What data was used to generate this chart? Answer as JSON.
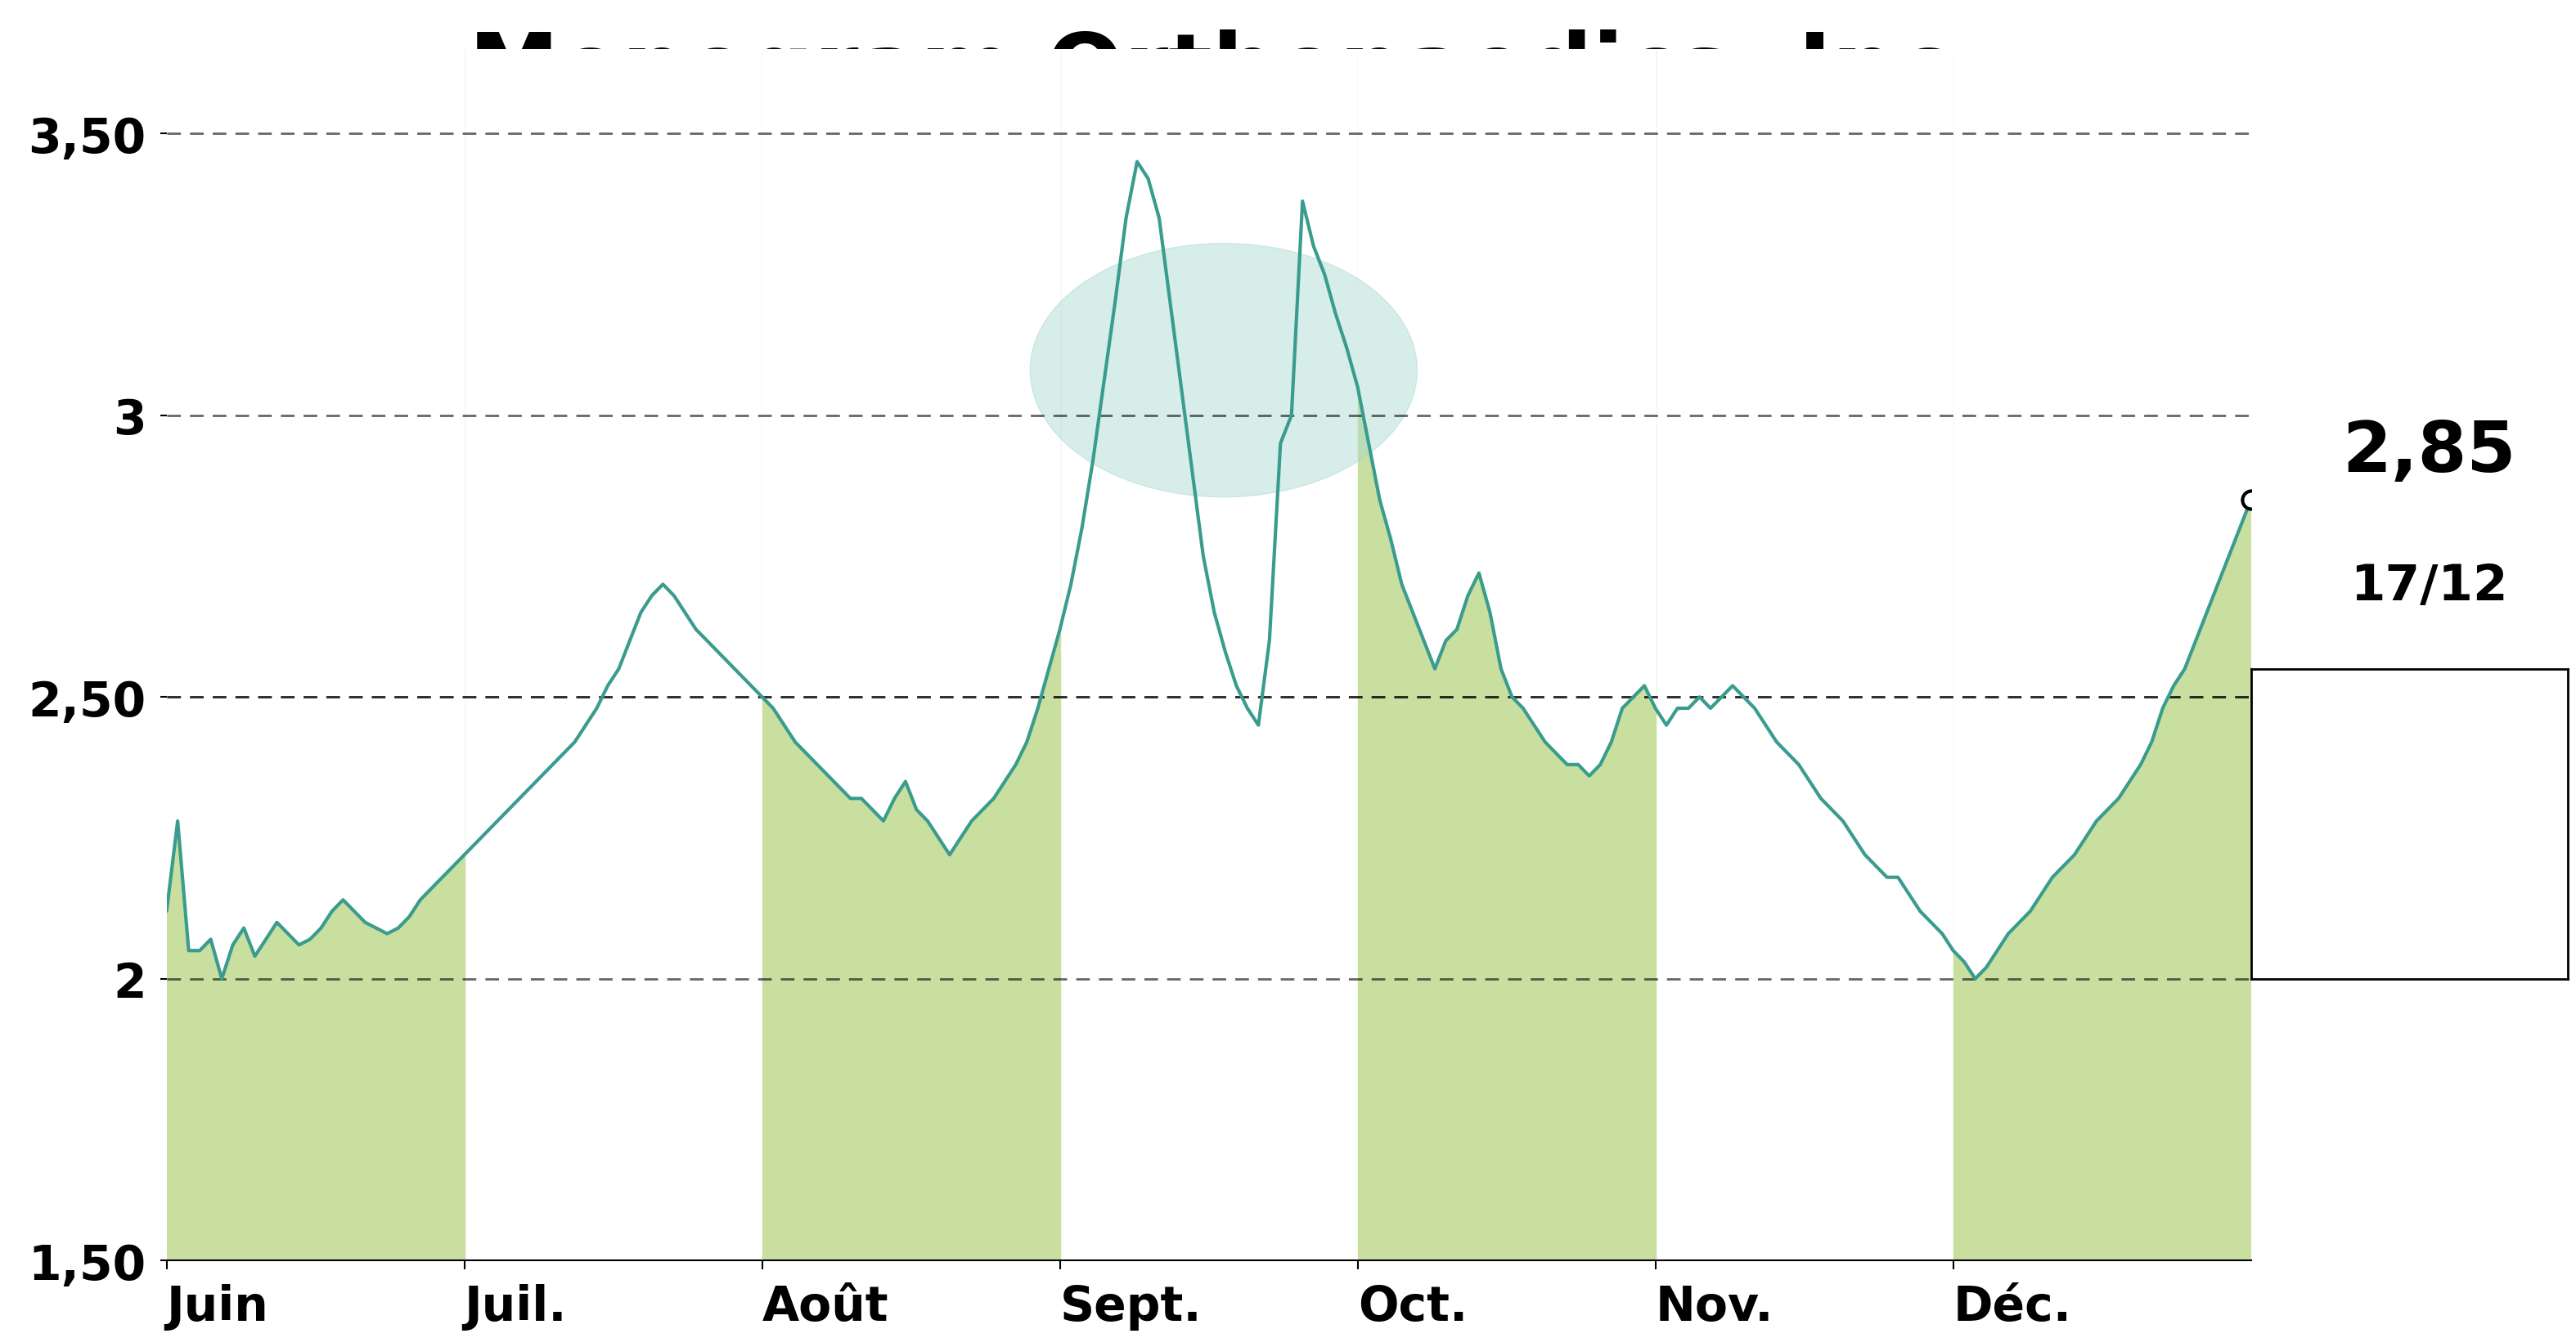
{
  "title": "Monogram Orthopaedics, Inc.",
  "title_bg_color": "#c8dfa0",
  "chart_bg_color": "#ffffff",
  "line_color": "#3a9c8e",
  "line_width": 3.0,
  "fill_color": "#c8dfa0",
  "ylim": [
    1.5,
    3.65
  ],
  "yticks": [
    1.5,
    2.0,
    2.5,
    3.0,
    3.5
  ],
  "ytick_labels": [
    "1,50",
    "2",
    "2,50",
    "3",
    "3,50"
  ],
  "xlabel_months": [
    "Juin",
    "Juil.",
    "Août",
    "Sept.",
    "Oct.",
    "Nov.",
    "Déc."
  ],
  "last_price": "2,85",
  "last_date": "17/12",
  "shaded_months": [
    0,
    2,
    4,
    6
  ],
  "bubble_color": "#a8d8d0",
  "bubble_alpha": 0.45,
  "prices": [
    2.12,
    2.28,
    2.05,
    2.05,
    2.07,
    2.0,
    2.06,
    2.09,
    2.04,
    2.07,
    2.1,
    2.08,
    2.06,
    2.07,
    2.09,
    2.12,
    2.14,
    2.12,
    2.1,
    2.09,
    2.08,
    2.09,
    2.11,
    2.14,
    2.16,
    2.18,
    2.2,
    2.22,
    2.24,
    2.26,
    2.28,
    2.3,
    2.32,
    2.34,
    2.36,
    2.38,
    2.4,
    2.42,
    2.45,
    2.48,
    2.52,
    2.55,
    2.6,
    2.65,
    2.68,
    2.7,
    2.68,
    2.65,
    2.62,
    2.6,
    2.58,
    2.56,
    2.54,
    2.52,
    2.5,
    2.48,
    2.45,
    2.42,
    2.4,
    2.38,
    2.36,
    2.34,
    2.32,
    2.32,
    2.3,
    2.28,
    2.32,
    2.35,
    2.3,
    2.28,
    2.25,
    2.22,
    2.25,
    2.28,
    2.3,
    2.32,
    2.35,
    2.38,
    2.42,
    2.48,
    2.55,
    2.62,
    2.7,
    2.8,
    2.92,
    3.06,
    3.2,
    3.35,
    3.45,
    3.42,
    3.35,
    3.2,
    3.05,
    2.9,
    2.75,
    2.65,
    2.58,
    2.52,
    2.48,
    2.45,
    2.6,
    2.95,
    3.0,
    3.38,
    3.3,
    3.25,
    3.18,
    3.12,
    3.05,
    2.95,
    2.85,
    2.78,
    2.7,
    2.65,
    2.6,
    2.55,
    2.6,
    2.62,
    2.68,
    2.72,
    2.65,
    2.55,
    2.5,
    2.48,
    2.45,
    2.42,
    2.4,
    2.38,
    2.38,
    2.36,
    2.38,
    2.42,
    2.48,
    2.5,
    2.52,
    2.48,
    2.45,
    2.48,
    2.48,
    2.5,
    2.48,
    2.5,
    2.52,
    2.5,
    2.48,
    2.45,
    2.42,
    2.4,
    2.38,
    2.35,
    2.32,
    2.3,
    2.28,
    2.25,
    2.22,
    2.2,
    2.18,
    2.18,
    2.15,
    2.12,
    2.1,
    2.08,
    2.05,
    2.03,
    2.0,
    2.02,
    2.05,
    2.08,
    2.1,
    2.12,
    2.15,
    2.18,
    2.2,
    2.22,
    2.25,
    2.28,
    2.3,
    2.32,
    2.35,
    2.38,
    2.42,
    2.48,
    2.52,
    2.55,
    2.6,
    2.65,
    2.7,
    2.75,
    2.8,
    2.85
  ]
}
